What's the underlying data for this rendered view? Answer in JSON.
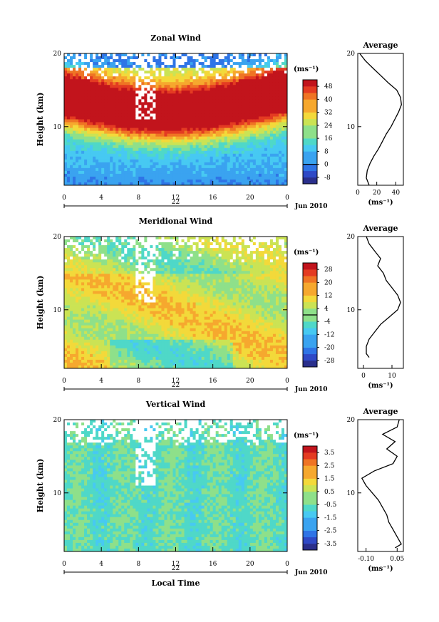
{
  "chart_data": [
    {
      "type": "heatmap",
      "title": "Zonal Wind",
      "ylabel": "Height (km)",
      "yticks": [
        "10",
        "20"
      ],
      "ylim": [
        2,
        20
      ],
      "xticks": [
        "0",
        "4",
        "8",
        "12",
        "16",
        "20",
        "0"
      ],
      "date_mark": "22",
      "date_label": "Jun 2010",
      "colorbar_unit": "(ms⁻¹)",
      "colorbar_ticks": [
        "-8",
        "0",
        "8",
        "16",
        "24",
        "32",
        "40",
        "48"
      ],
      "colorbar_range": [
        -12,
        52
      ],
      "zero_line_at": 0,
      "profile_title": "Average",
      "profile_xticks": [
        "0",
        "20",
        "40"
      ],
      "profile_xlim": [
        0,
        48
      ],
      "profile_yticks": [
        "10",
        "20"
      ],
      "profile_unit": "(ms⁻¹)",
      "profile": {
        "height": [
          2,
          3,
          4,
          5,
          6,
          7,
          8,
          9,
          10,
          11,
          12,
          13,
          14,
          15,
          16,
          17,
          18,
          19,
          20
        ],
        "value": [
          12,
          9,
          10,
          13,
          17,
          22,
          26,
          30,
          35,
          39,
          43,
          46,
          45,
          41,
          32,
          24,
          16,
          8,
          2
        ]
      }
    },
    {
      "type": "heatmap",
      "title": "Meridional Wind",
      "ylabel": "Height (km)",
      "yticks": [
        "10",
        "20"
      ],
      "ylim": [
        2,
        20
      ],
      "xticks": [
        "0",
        "4",
        "8",
        "12",
        "16",
        "20",
        "0"
      ],
      "date_mark": "22",
      "date_label": "Jun 2010",
      "colorbar_unit": "(ms⁻¹)",
      "colorbar_ticks": [
        "-28",
        "-20",
        "-12",
        "-4",
        "4",
        "12",
        "20",
        "28"
      ],
      "colorbar_range": [
        -32,
        32
      ],
      "zero_line_at": 0,
      "profile_title": "Average",
      "profile_xticks": [
        "0",
        "10"
      ],
      "profile_xlim": [
        -2,
        14
      ],
      "profile_yticks": [
        "10",
        "20"
      ],
      "profile_unit": "(ms⁻¹)",
      "profile": {
        "height": [
          3.5,
          4,
          5,
          6,
          7,
          8,
          9,
          10,
          11,
          12,
          13,
          14,
          15,
          16,
          17,
          18,
          19,
          20
        ],
        "value": [
          2,
          1,
          1,
          2,
          4,
          6,
          9,
          12,
          13,
          12,
          10,
          8,
          7,
          5,
          6,
          4,
          2,
          1
        ]
      }
    },
    {
      "type": "heatmap",
      "title": "Vertical Wind",
      "ylabel": "Height (km)",
      "yticks": [
        "10",
        "20"
      ],
      "ylim": [
        2,
        20
      ],
      "xticks": [
        "0",
        "4",
        "8",
        "12",
        "16",
        "20",
        "0"
      ],
      "xlabel": "Local Time",
      "date_mark": "22",
      "date_label": "Jun 2010",
      "colorbar_unit": "(ms⁻¹)",
      "colorbar_ticks": [
        "-3.5",
        "-2.5",
        "-1.5",
        "-0.5",
        "0.5",
        "1.5",
        "2.5",
        "3.5"
      ],
      "colorbar_range": [
        -4,
        4
      ],
      "profile_title": "Average",
      "profile_xticks": [
        "-0.10",
        "0.05"
      ],
      "profile_xlim": [
        -0.14,
        0.08
      ],
      "profile_yticks": [
        "10",
        "20"
      ],
      "profile_unit": "(ms⁻¹)",
      "profile": {
        "height": [
          2.5,
          3,
          4,
          5,
          6,
          7,
          8,
          9,
          10,
          11,
          12,
          13,
          14,
          15,
          16,
          17,
          18,
          19,
          20
        ],
        "value": [
          0.04,
          0.07,
          0.05,
          0.03,
          0.01,
          0.0,
          -0.02,
          -0.04,
          -0.07,
          -0.1,
          -0.12,
          -0.06,
          0.03,
          0.05,
          0.0,
          0.04,
          -0.02,
          0.05,
          0.06
        ]
      }
    }
  ]
}
